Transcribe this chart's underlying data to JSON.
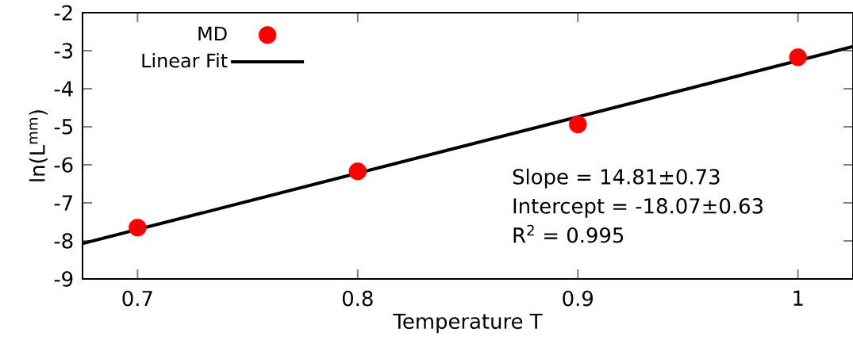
{
  "chart_data": {
    "type": "scatter",
    "xlabel": "Temperature  T",
    "ylabel": "ln(L$^{mm}$)",
    "xlim": [
      0.675,
      1.025
    ],
    "ylim": [
      -9,
      -2
    ],
    "xticks": [
      0.7,
      0.8,
      0.9,
      1
    ],
    "yticks": [
      -9,
      -8,
      -7,
      -6,
      -5,
      -4,
      -3,
      -2
    ],
    "legend": "top left",
    "series": [
      {
        "name": "MD",
        "marker": "circle",
        "color": "#ff0000",
        "x": [
          0.7,
          0.8,
          0.9,
          1.0
        ],
        "values": [
          -7.65,
          -6.17,
          -4.94,
          -3.17
        ]
      },
      {
        "name": "Linear Fit",
        "type": "line",
        "line_style": "solid",
        "color": "#000000",
        "x": [
          0.675,
          1.025
        ],
        "values": [
          -8.07,
          -2.89
        ]
      }
    ],
    "annotations": [
      "Slope = 14.81±0.73",
      "Intercept = -18.07±0.63",
      "R$^{2}$ = 0.995"
    ]
  }
}
